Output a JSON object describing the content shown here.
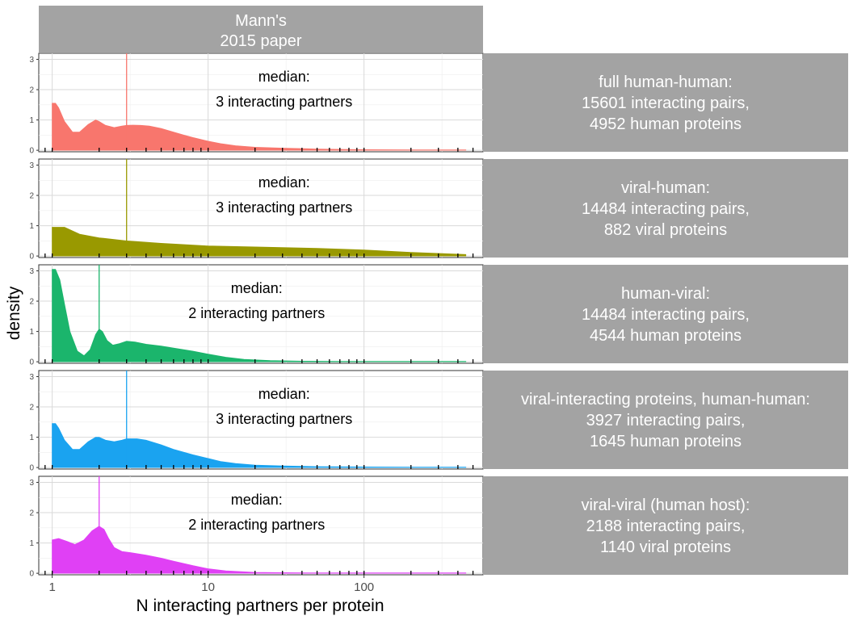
{
  "chart_data": {
    "type": "area",
    "facet_column_strip": [
      "Mann's",
      "2015 paper"
    ],
    "xlabel": "N interacting partners per protein",
    "ylabel": "density",
    "x_scale": "log10",
    "xlim": [
      0.82,
      580
    ],
    "x_ticks": [
      1,
      10,
      100
    ],
    "x_tick_labels": [
      "1",
      "10",
      "100"
    ],
    "ylim": [
      -0.05,
      3.2
    ],
    "y_ticks": [
      0,
      1,
      2,
      3
    ],
    "y_tick_labels": [
      "0",
      "1",
      "2",
      "3"
    ],
    "grid": true,
    "panels": [
      {
        "strip": [
          "full human-human:",
          "15601 interacting pairs,",
          " 4952 human proteins"
        ],
        "color": "#F8766D",
        "median": 3,
        "median_text": [
          "median:",
          "3 interacting partners"
        ],
        "x": [
          1,
          1.05,
          1.1,
          1.2,
          1.35,
          1.5,
          1.7,
          1.9,
          2,
          2.2,
          2.5,
          2.8,
          3,
          3.3,
          3.7,
          4.2,
          5,
          6,
          7,
          8,
          10,
          12,
          15,
          20,
          30,
          50,
          100,
          200,
          450
        ],
        "y": [
          1.55,
          1.55,
          1.4,
          0.95,
          0.6,
          0.6,
          0.85,
          1.0,
          0.95,
          0.82,
          0.75,
          0.8,
          0.82,
          0.83,
          0.82,
          0.8,
          0.72,
          0.6,
          0.5,
          0.42,
          0.3,
          0.22,
          0.15,
          0.1,
          0.07,
          0.04,
          0.02,
          0.01,
          0.01
        ]
      },
      {
        "strip": [
          "viral-human:",
          "14484 interacting pairs,",
          " 882 viral proteins"
        ],
        "color": "#999900",
        "median": 3,
        "median_text": [
          "median:",
          "3 interacting partners"
        ],
        "x": [
          1,
          1.2,
          1.5,
          2,
          3,
          5,
          10,
          20,
          50,
          100,
          200,
          450
        ],
        "y": [
          0.95,
          0.95,
          0.72,
          0.6,
          0.5,
          0.42,
          0.33,
          0.3,
          0.25,
          0.2,
          0.12,
          0.05
        ]
      },
      {
        "strip": [
          "human-viral:",
          "14484 interacting pairs,",
          " 4544 human proteins"
        ],
        "color": "#1BB56C",
        "median": 2,
        "median_text": [
          "median:",
          "2 interacting partners"
        ],
        "x": [
          1,
          1.05,
          1.12,
          1.2,
          1.3,
          1.45,
          1.6,
          1.75,
          1.9,
          2,
          2.1,
          2.25,
          2.45,
          2.7,
          3,
          3.4,
          4,
          5,
          6,
          8,
          10,
          13,
          17,
          25,
          40,
          70,
          150,
          450
        ],
        "y": [
          3.05,
          3.05,
          2.7,
          1.9,
          1.0,
          0.35,
          0.2,
          0.4,
          0.9,
          1.08,
          1.0,
          0.7,
          0.55,
          0.6,
          0.68,
          0.65,
          0.58,
          0.52,
          0.45,
          0.35,
          0.25,
          0.15,
          0.08,
          0.04,
          0.02,
          0.01,
          0.01,
          0.01
        ]
      },
      {
        "strip": [
          "viral-interacting proteins, human-human:",
          "3927 interacting pairs,",
          " 1645 human proteins"
        ],
        "color": "#1AA3F0",
        "median": 3,
        "median_text": [
          "median:",
          "3 interacting partners"
        ],
        "x": [
          1,
          1.05,
          1.1,
          1.2,
          1.35,
          1.5,
          1.7,
          1.9,
          2,
          2.2,
          2.5,
          2.8,
          3,
          3.5,
          4,
          5,
          6,
          8,
          10,
          12,
          15,
          20,
          30,
          50,
          100,
          200,
          450
        ],
        "y": [
          1.45,
          1.45,
          1.3,
          0.9,
          0.6,
          0.6,
          0.85,
          1.0,
          1.0,
          0.9,
          0.85,
          0.9,
          0.95,
          0.95,
          0.9,
          0.75,
          0.6,
          0.42,
          0.3,
          0.2,
          0.13,
          0.08,
          0.05,
          0.03,
          0.02,
          0.01,
          0.01
        ]
      },
      {
        "strip": [
          "viral-viral (human host):",
          "2188 interacting pairs,",
          " 1140 viral proteins"
        ],
        "color": "#E040F5",
        "median": 2,
        "median_text": [
          "median:",
          "2 interacting partners"
        ],
        "x": [
          1,
          1.1,
          1.25,
          1.4,
          1.6,
          1.8,
          2,
          2.15,
          2.3,
          2.5,
          2.8,
          3.2,
          4,
          5,
          6,
          8,
          10,
          13,
          20,
          30,
          50,
          100,
          200,
          450
        ],
        "y": [
          1.1,
          1.15,
          1.05,
          0.95,
          1.1,
          1.4,
          1.55,
          1.45,
          1.15,
          0.85,
          0.72,
          0.68,
          0.6,
          0.5,
          0.4,
          0.25,
          0.15,
          0.08,
          0.03,
          0.02,
          0.01,
          0.01,
          0.01,
          0.01
        ]
      }
    ]
  }
}
